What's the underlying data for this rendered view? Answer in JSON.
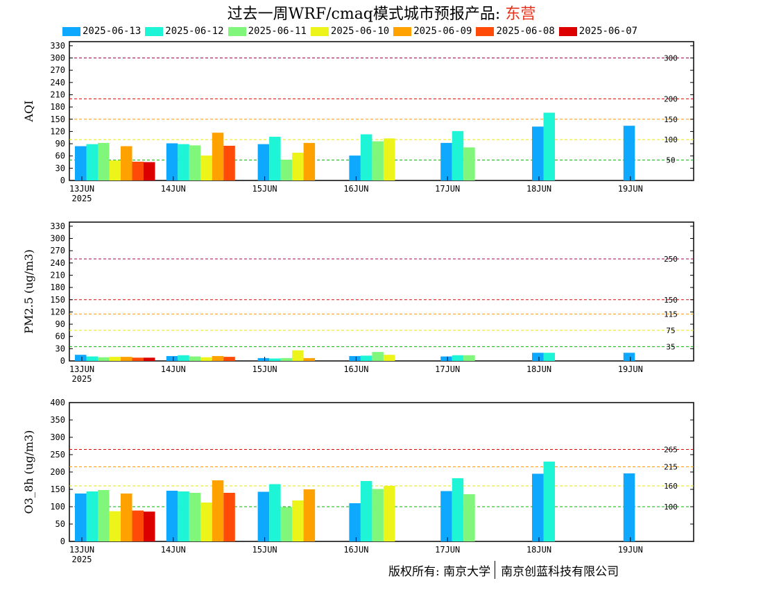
{
  "title": {
    "main": "过去一周WRF/cmaq模式城市预报产品: ",
    "city": "东营"
  },
  "footer": {
    "left": "版权所有: 南京大学",
    "right": "南京创蓝科技有限公司"
  },
  "colors": {
    "series": [
      "#0fa8ff",
      "#1ef5d6",
      "#80f77a",
      "#ecf41a",
      "#ffa200",
      "#ff4a08",
      "#dc0000"
    ],
    "grid_green": "#00b000",
    "grid_yellow": "#e6e600",
    "grid_orange": "#ff9900",
    "grid_red": "#e00000",
    "grid_purple": "#a0004a"
  },
  "chart_data": [
    {
      "type": "bar",
      "ylabel": "AQI",
      "ylim": [
        0,
        340
      ],
      "yticks": [
        0,
        30,
        60,
        90,
        120,
        150,
        180,
        210,
        240,
        270,
        300,
        330
      ],
      "x_labels": [
        "13JUN",
        "14JUN",
        "15JUN",
        "16JUN",
        "17JUN",
        "18JUN",
        "19JUN"
      ],
      "year_label": "2025",
      "ref_lines": [
        {
          "value": 50,
          "label": "50",
          "color": "green"
        },
        {
          "value": 100,
          "label": "100",
          "color": "yellow"
        },
        {
          "value": 150,
          "label": "150",
          "color": "orange"
        },
        {
          "value": 200,
          "label": "200",
          "color": "red"
        },
        {
          "value": 300,
          "label": "300",
          "color": "purple"
        }
      ],
      "series": [
        {
          "name": "2025-06-13",
          "values": [
            84,
            91,
            89,
            61,
            92,
            132,
            134
          ]
        },
        {
          "name": "2025-06-12",
          "values": [
            89,
            89,
            107,
            113,
            121,
            166,
            null
          ]
        },
        {
          "name": "2025-06-11",
          "values": [
            92,
            86,
            51,
            96,
            81,
            null,
            null
          ]
        },
        {
          "name": "2025-06-10",
          "values": [
            49,
            61,
            68,
            103,
            null,
            null,
            null
          ]
        },
        {
          "name": "2025-06-09",
          "values": [
            84,
            117,
            92,
            null,
            null,
            null,
            null
          ]
        },
        {
          "name": "2025-06-08",
          "values": [
            46,
            85,
            null,
            null,
            null,
            null,
            null
          ]
        },
        {
          "name": "2025-06-07",
          "values": [
            45,
            null,
            null,
            null,
            null,
            null,
            null
          ]
        }
      ]
    },
    {
      "type": "bar",
      "ylabel": "PM2.5 (ug/m3)",
      "ylim": [
        0,
        340
      ],
      "yticks": [
        0,
        30,
        60,
        90,
        120,
        150,
        180,
        210,
        240,
        270,
        300,
        330
      ],
      "x_labels": [
        "13JUN",
        "14JUN",
        "15JUN",
        "16JUN",
        "17JUN",
        "18JUN",
        "19JUN"
      ],
      "year_label": "2025",
      "ref_lines": [
        {
          "value": 35,
          "label": "35",
          "color": "green"
        },
        {
          "value": 75,
          "label": "75",
          "color": "yellow"
        },
        {
          "value": 115,
          "label": "115",
          "color": "orange"
        },
        {
          "value": 150,
          "label": "150",
          "color": "red"
        },
        {
          "value": 250,
          "label": "250",
          "color": "purple"
        }
      ],
      "series": [
        {
          "name": "2025-06-13",
          "values": [
            15,
            12,
            7,
            12,
            11,
            20,
            20
          ]
        },
        {
          "name": "2025-06-12",
          "values": [
            11,
            14,
            6,
            13,
            14,
            20,
            null
          ]
        },
        {
          "name": "2025-06-11",
          "values": [
            9,
            11,
            7,
            22,
            14,
            null,
            null
          ]
        },
        {
          "name": "2025-06-10",
          "values": [
            10,
            9,
            26,
            15,
            null,
            null,
            null
          ]
        },
        {
          "name": "2025-06-09",
          "values": [
            10,
            12,
            7,
            null,
            null,
            null,
            null
          ]
        },
        {
          "name": "2025-06-08",
          "values": [
            8,
            10,
            null,
            null,
            null,
            null,
            null
          ]
        },
        {
          "name": "2025-06-07",
          "values": [
            8,
            null,
            null,
            null,
            null,
            null,
            null
          ]
        }
      ]
    },
    {
      "type": "bar",
      "ylabel": "O3_8h (ug/m3)",
      "ylim": [
        0,
        400
      ],
      "yticks": [
        0,
        50,
        100,
        150,
        200,
        250,
        300,
        350,
        400
      ],
      "x_labels": [
        "13JUN",
        "14JUN",
        "15JUN",
        "16JUN",
        "17JUN",
        "18JUN",
        "19JUN"
      ],
      "year_label": "2025",
      "ref_lines": [
        {
          "value": 100,
          "label": "100",
          "color": "green"
        },
        {
          "value": 160,
          "label": "160",
          "color": "yellow"
        },
        {
          "value": 215,
          "label": "215",
          "color": "orange"
        },
        {
          "value": 265,
          "label": "265",
          "color": "red"
        }
      ],
      "series": [
        {
          "name": "2025-06-13",
          "values": [
            138,
            146,
            143,
            110,
            145,
            195,
            196
          ]
        },
        {
          "name": "2025-06-12",
          "values": [
            144,
            144,
            165,
            174,
            182,
            230,
            null
          ]
        },
        {
          "name": "2025-06-11",
          "values": [
            148,
            140,
            99,
            151,
            136,
            null,
            null
          ]
        },
        {
          "name": "2025-06-10",
          "values": [
            87,
            112,
            118,
            160,
            null,
            null,
            null
          ]
        },
        {
          "name": "2025-06-09",
          "values": [
            138,
            176,
            150,
            null,
            null,
            null,
            null
          ]
        },
        {
          "name": "2025-06-08",
          "values": [
            89,
            140,
            null,
            null,
            null,
            null,
            null
          ]
        },
        {
          "name": "2025-06-07",
          "values": [
            86,
            null,
            null,
            null,
            null,
            null,
            null
          ]
        }
      ]
    }
  ]
}
